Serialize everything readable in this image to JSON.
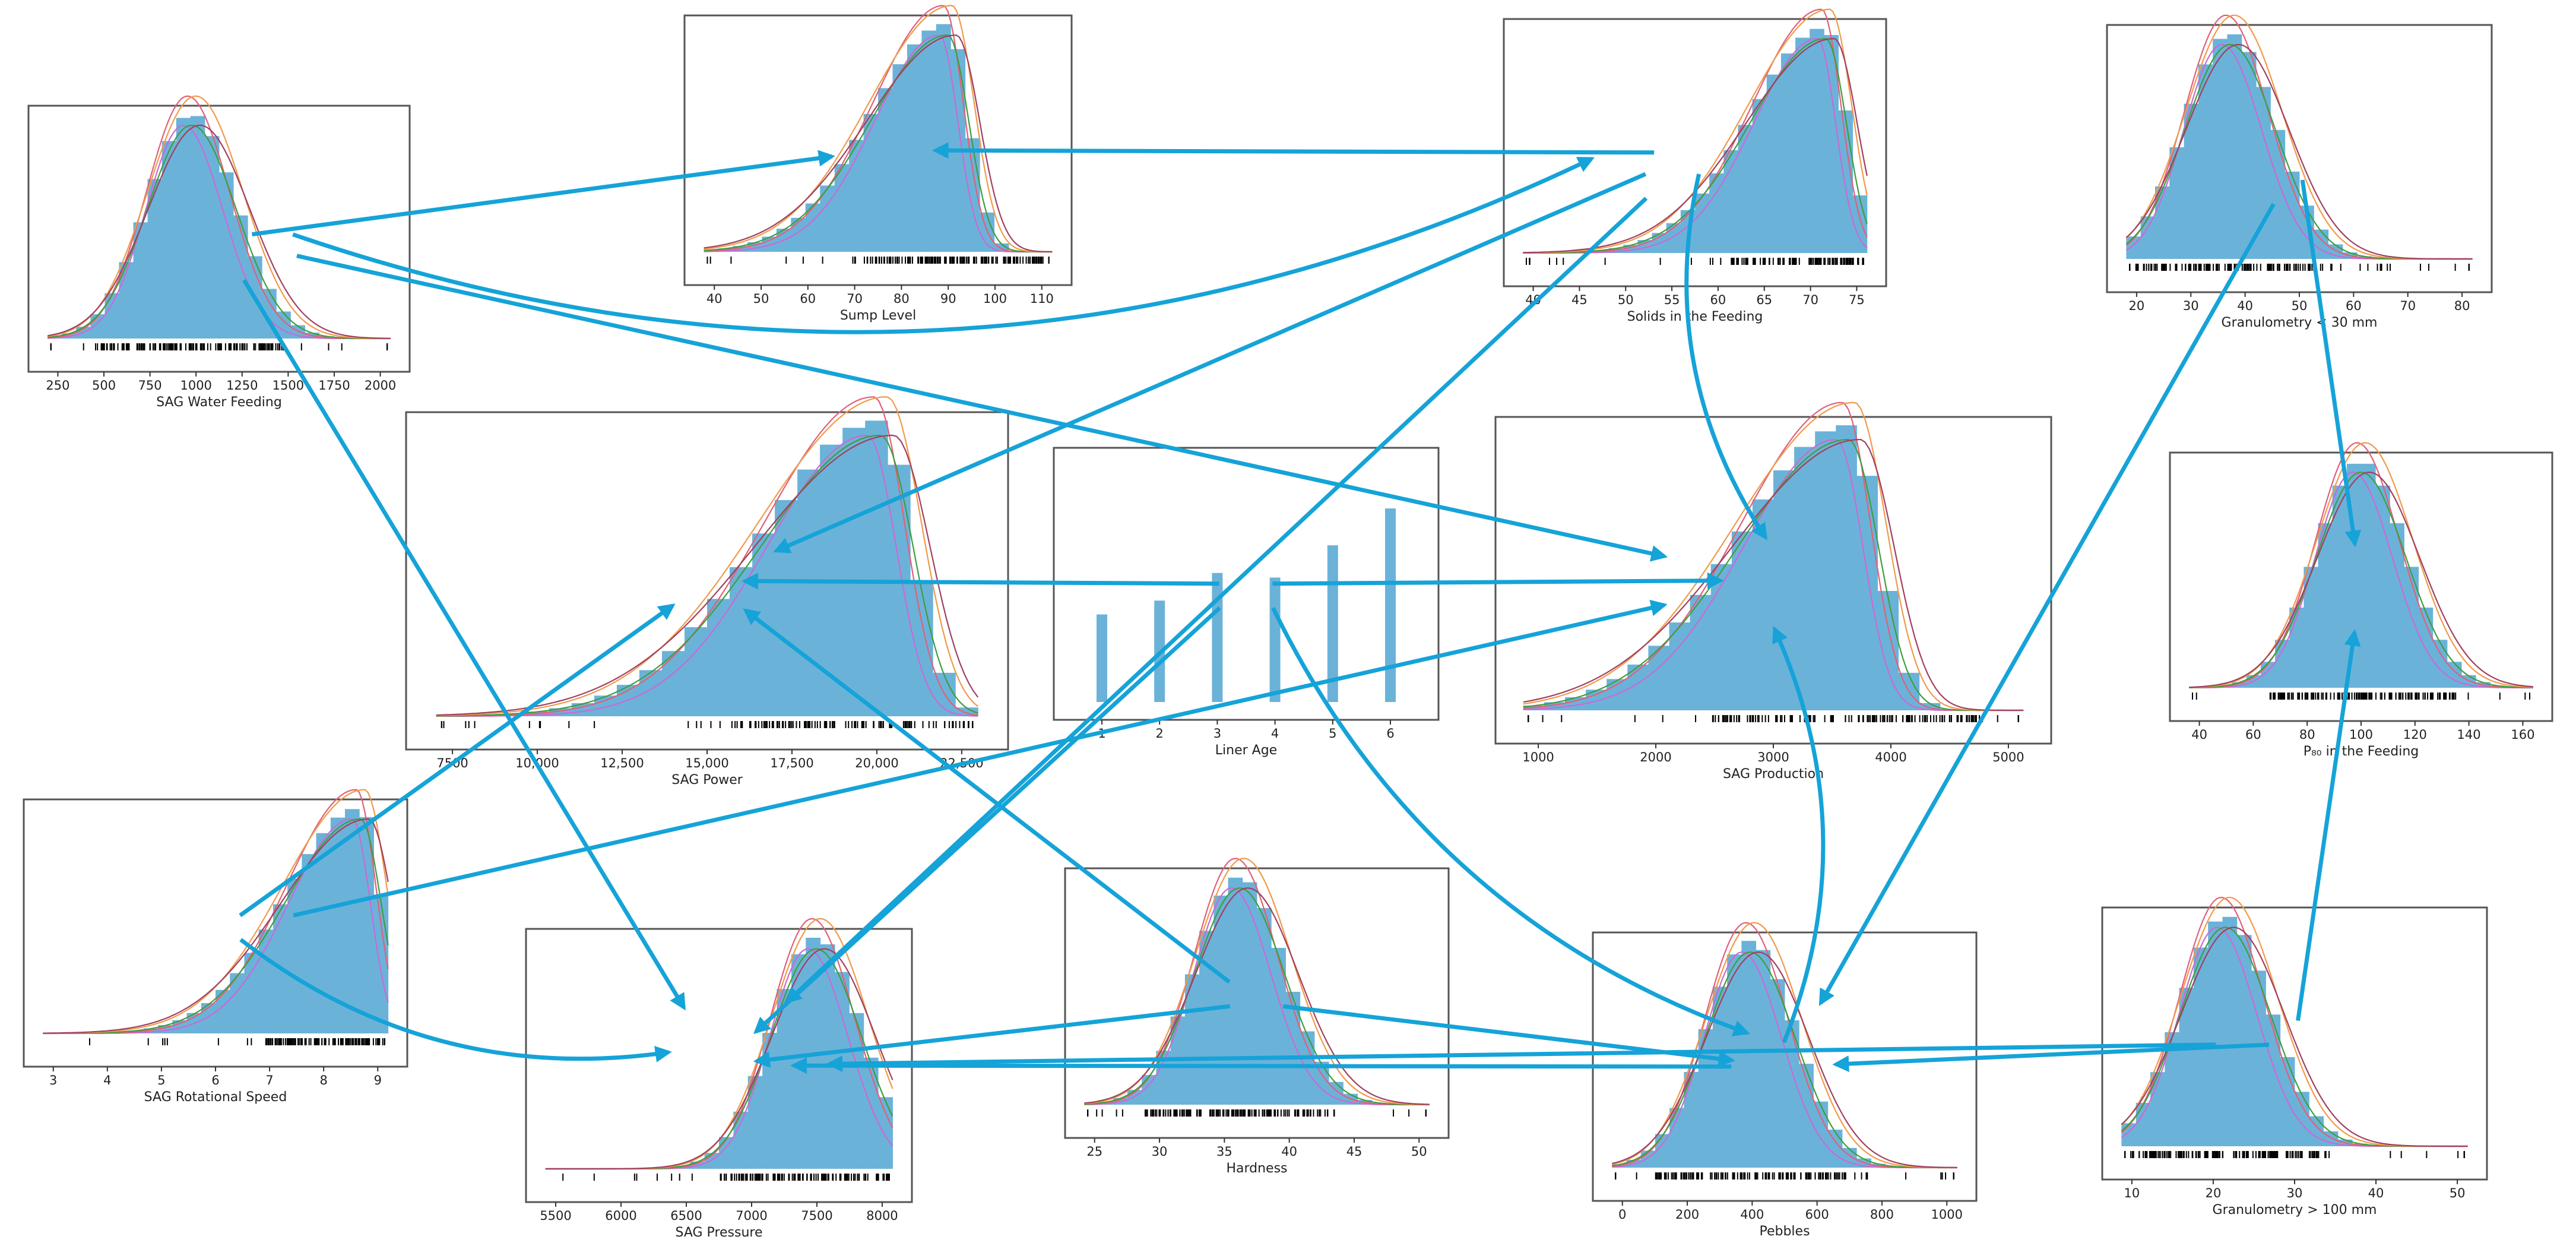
{
  "colors": {
    "bar": "#6bb2d9",
    "arrow": "#15a3d8",
    "fits": [
      "#c96ad6",
      "#e0607a",
      "#3e9e3e",
      "#f09a4a",
      "#a04060"
    ]
  },
  "panels": [
    {
      "id": "sag-water-feeding",
      "label": "SAG Water Feeding",
      "ticks": [
        "250",
        "500",
        "750",
        "1000",
        "1250",
        "1500",
        "1750",
        "2000"
      ],
      "shape": "bell",
      "mode": 0.42
    },
    {
      "id": "sump-level",
      "label": "Sump Level",
      "ticks": [
        "40",
        "50",
        "60",
        "70",
        "80",
        "90",
        "100",
        "110"
      ],
      "shape": "skew-left",
      "mode": 0.7
    },
    {
      "id": "solids-in-the-feeding",
      "label": "Solids in the Feeding",
      "ticks": [
        "40",
        "45",
        "50",
        "55",
        "60",
        "65",
        "70",
        "75"
      ],
      "shape": "skew-left",
      "mode": 0.88
    },
    {
      "id": "granulometry-lt-30",
      "label": "Granulometry < 30 mm",
      "ticks": [
        "20",
        "30",
        "40",
        "50",
        "60",
        "70",
        "80"
      ],
      "shape": "bell",
      "mode": 0.3
    },
    {
      "id": "sag-power",
      "label": "SAG Power",
      "ticks": [
        "7500",
        "10,000",
        "12,500",
        "15,000",
        "17,500",
        "20,000",
        "22,500"
      ],
      "shape": "skew-left",
      "mode": 0.82
    },
    {
      "id": "liner-age",
      "label": "Liner Age",
      "ticks": [
        "1",
        "2",
        "3",
        "4",
        "5",
        "6"
      ],
      "shape": "bars"
    },
    {
      "id": "sag-production",
      "label": "SAG Production",
      "ticks": [
        "1000",
        "2000",
        "3000",
        "4000",
        "5000"
      ],
      "shape": "skew-left",
      "mode": 0.65
    },
    {
      "id": "p80-in-the-feeding",
      "label": "P₈₀ in the Feeding",
      "ticks": [
        "40",
        "60",
        "80",
        "100",
        "120",
        "140",
        "160"
      ],
      "shape": "bell",
      "mode": 0.5
    },
    {
      "id": "sag-rotational-speed",
      "label": "SAG Rotational Speed",
      "ticks": [
        "3",
        "4",
        "5",
        "6",
        "7",
        "8",
        "9"
      ],
      "shape": "skew-left",
      "mode": 0.92
    },
    {
      "id": "sag-pressure",
      "label": "SAG Pressure",
      "ticks": [
        "5500",
        "6000",
        "6500",
        "7000",
        "7500",
        "8000"
      ],
      "shape": "bell",
      "mode": 0.78
    },
    {
      "id": "hardness",
      "label": "Hardness",
      "ticks": [
        "25",
        "30",
        "35",
        "40",
        "45",
        "50"
      ],
      "shape": "bell",
      "mode": 0.45
    },
    {
      "id": "pebbles",
      "label": "Pebbles",
      "ticks": [
        "0",
        "200",
        "400",
        "600",
        "800",
        "1000"
      ],
      "shape": "bell",
      "mode": 0.4
    },
    {
      "id": "granulometry-gt-100",
      "label": "Granulometry > 100 mm",
      "ticks": [
        "10",
        "20",
        "30",
        "40",
        "50"
      ],
      "shape": "bell",
      "mode": 0.3
    }
  ],
  "liner_age_values": [
    0.38,
    0.44,
    0.56,
    0.54,
    0.68,
    0.84
  ],
  "edges": [
    [
      "sag-water-feeding",
      "sump-level"
    ],
    [
      "sag-water-feeding",
      "solids-in-the-feeding"
    ],
    [
      "sag-water-feeding",
      "sag-production"
    ],
    [
      "sag-water-feeding",
      "sag-pressure"
    ],
    [
      "solids-in-the-feeding",
      "sump-level"
    ],
    [
      "solids-in-the-feeding",
      "sag-power"
    ],
    [
      "solids-in-the-feeding",
      "sag-production"
    ],
    [
      "solids-in-the-feeding",
      "sag-pressure"
    ],
    [
      "liner-age",
      "sag-power"
    ],
    [
      "liner-age",
      "sag-production"
    ],
    [
      "liner-age",
      "sag-pressure"
    ],
    [
      "liner-age",
      "pebbles"
    ],
    [
      "granulometry-lt-30",
      "p80-in-the-feeding"
    ],
    [
      "granulometry-lt-30",
      "pebbles"
    ],
    [
      "sag-rotational-speed",
      "sag-power"
    ],
    [
      "sag-rotational-speed",
      "sag-production"
    ],
    [
      "sag-rotational-speed",
      "sag-pressure"
    ],
    [
      "hardness",
      "sag-power"
    ],
    [
      "hardness",
      "sag-pressure"
    ],
    [
      "hardness",
      "pebbles"
    ],
    [
      "pebbles",
      "sag-pressure"
    ],
    [
      "pebbles",
      "sag-production"
    ],
    [
      "granulometry-gt-100",
      "pebbles"
    ],
    [
      "granulometry-gt-100",
      "sag-pressure"
    ],
    [
      "granulometry-gt-100",
      "p80-in-the-feeding"
    ]
  ]
}
